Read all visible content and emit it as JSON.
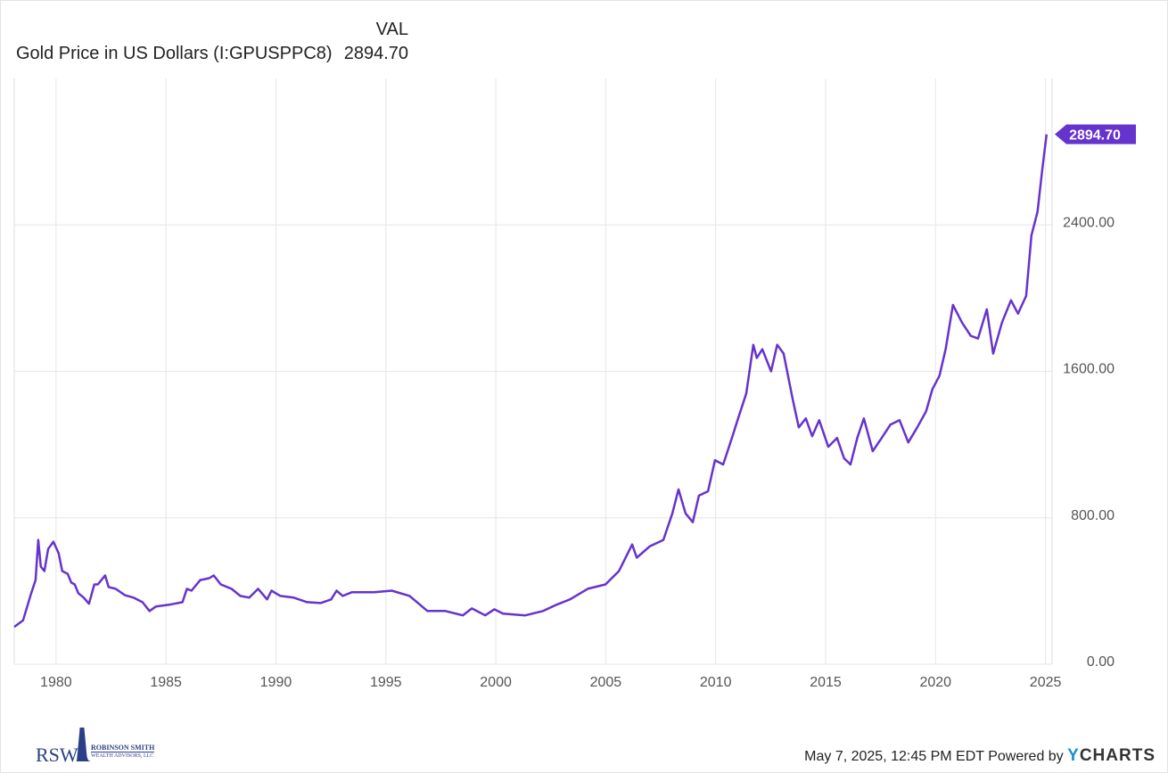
{
  "legend": {
    "header": "VAL",
    "series_name": "Gold Price in US Dollars (I:GPUSPPC8)",
    "value": "2894.70"
  },
  "footer": {
    "timestamp": "May 7, 2025, 12:45 PM EDT",
    "powered_by": "Powered by",
    "brand_y": "Y",
    "brand_rest": "CHARTS"
  },
  "logo": {
    "initials": "RSWA",
    "name": "ROBINSON SMITH",
    "sub": "WEALTH ADVISORS, LLC"
  },
  "colors": {
    "line": "#6633cc",
    "grid": "#e6e6e6",
    "axis_text": "#555555"
  },
  "chart_data": {
    "type": "line",
    "title": "Gold Price in US Dollars (I:GPUSPPC8)",
    "xlabel": "",
    "ylabel": "",
    "xlim": [
      1978.1,
      2025.3
    ],
    "ylim": [
      0,
      3200
    ],
    "x_ticks": [
      1980,
      1985,
      1990,
      1995,
      2000,
      2005,
      2010,
      2015,
      2020,
      2025
    ],
    "y_ticks": [
      0,
      800,
      1600,
      2400
    ],
    "y_tick_labels": [
      "0.00",
      "800.00",
      "1600.00",
      "2400.00"
    ],
    "last_value_label": "2894.70",
    "grid": true,
    "series": [
      {
        "name": "Gold Price in US Dollars (I:GPUSPPC8)",
        "x": [
          1978.1,
          1978.5,
          1978.87,
          1979.07,
          1979.19,
          1979.31,
          1979.47,
          1979.64,
          1979.88,
          1980.12,
          1980.28,
          1980.53,
          1980.69,
          1980.85,
          1981.01,
          1981.26,
          1981.5,
          1981.74,
          1981.9,
          1982.23,
          1982.39,
          1982.71,
          1983.12,
          1983.52,
          1983.93,
          1984.25,
          1984.54,
          1985.14,
          1985.75,
          1985.95,
          1986.16,
          1986.56,
          1986.97,
          1987.17,
          1987.49,
          1987.98,
          1988.38,
          1988.79,
          1989.19,
          1989.6,
          1989.8,
          1990.2,
          1990.81,
          1991.42,
          1992.03,
          1992.51,
          1992.76,
          1993.04,
          1993.45,
          1994.46,
          1995.27,
          1996.08,
          1996.89,
          1997.7,
          1998.5,
          1998.91,
          1999.52,
          1999.93,
          2000.33,
          2001.34,
          2002.15,
          2002.76,
          2003.37,
          2004.18,
          2004.99,
          2005.6,
          2006.2,
          2006.41,
          2007.01,
          2007.62,
          2008.03,
          2008.31,
          2008.63,
          2008.96,
          2009.24,
          2009.65,
          2009.97,
          2010.34,
          2010.74,
          2011.06,
          2011.39,
          2011.71,
          2011.87,
          2012.12,
          2012.52,
          2012.8,
          2013.09,
          2013.49,
          2013.78,
          2014.1,
          2014.39,
          2014.71,
          2015.12,
          2015.52,
          2015.84,
          2016.13,
          2016.44,
          2016.74,
          2017.14,
          2017.55,
          2017.95,
          2018.36,
          2018.76,
          2019.17,
          2019.57,
          2019.86,
          2020.18,
          2020.46,
          2020.79,
          2021.2,
          2021.6,
          2021.93,
          2022.33,
          2022.62,
          2023.02,
          2023.43,
          2023.75,
          2024.12,
          2024.36,
          2024.64,
          2024.84,
          2025.05
        ],
        "values": [
          204,
          240,
          388,
          460,
          679,
          533,
          509,
          630,
          669,
          606,
          509,
          494,
          446,
          436,
          388,
          364,
          330,
          436,
          436,
          485,
          422,
          412,
          378,
          364,
          339,
          291,
          315,
          325,
          339,
          412,
          402,
          460,
          470,
          485,
          436,
          412,
          373,
          364,
          412,
          354,
          402,
          373,
          364,
          339,
          334,
          354,
          402,
          373,
          393,
          393,
          402,
          373,
          291,
          291,
          267,
          305,
          267,
          300,
          276,
          267,
          291,
          325,
          354,
          412,
          436,
          509,
          654,
          582,
          645,
          679,
          824,
          955,
          824,
          776,
          921,
          945,
          1115,
          1091,
          1236,
          1357,
          1479,
          1745,
          1673,
          1721,
          1600,
          1745,
          1697,
          1454,
          1294,
          1343,
          1246,
          1333,
          1188,
          1236,
          1125,
          1091,
          1236,
          1343,
          1164,
          1236,
          1309,
          1333,
          1212,
          1294,
          1382,
          1503,
          1576,
          1721,
          1963,
          1867,
          1794,
          1779,
          1939,
          1697,
          1867,
          1988,
          1915,
          2012,
          2342,
          2473,
          2691,
          2894.7
        ]
      }
    ]
  }
}
